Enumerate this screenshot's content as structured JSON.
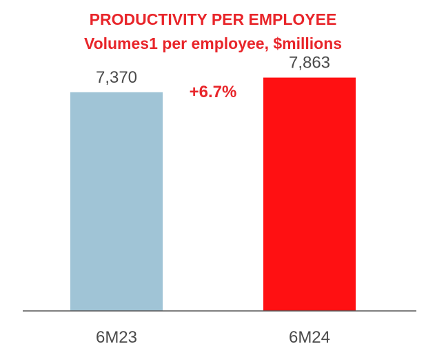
{
  "header": {
    "title": "PRODUCTIVITY PER EMPLOYEE",
    "subtitle": "Volumes1 per employee, $millions"
  },
  "annotation": {
    "growth": "+6.7%"
  },
  "colors": {
    "title": "#e8252a",
    "bar_6M23": "#a0c4d6",
    "bar_6M24": "#ff1012",
    "axis": "#555555",
    "label": "#4a4a4a"
  },
  "chart_data": {
    "type": "bar",
    "title": "PRODUCTIVITY PER EMPLOYEE",
    "subtitle": "Volumes1 per employee, $millions",
    "categories": [
      "6M23",
      "6M24"
    ],
    "values": [
      7370,
      7863
    ],
    "data_labels": [
      "7,370",
      "7,863"
    ],
    "bar_colors": [
      "#a0c4d6",
      "#ff1012"
    ],
    "ylim": [
      0,
      9200
    ],
    "grid": false,
    "legend": "none",
    "annotations": [
      "+6.7%"
    ]
  }
}
